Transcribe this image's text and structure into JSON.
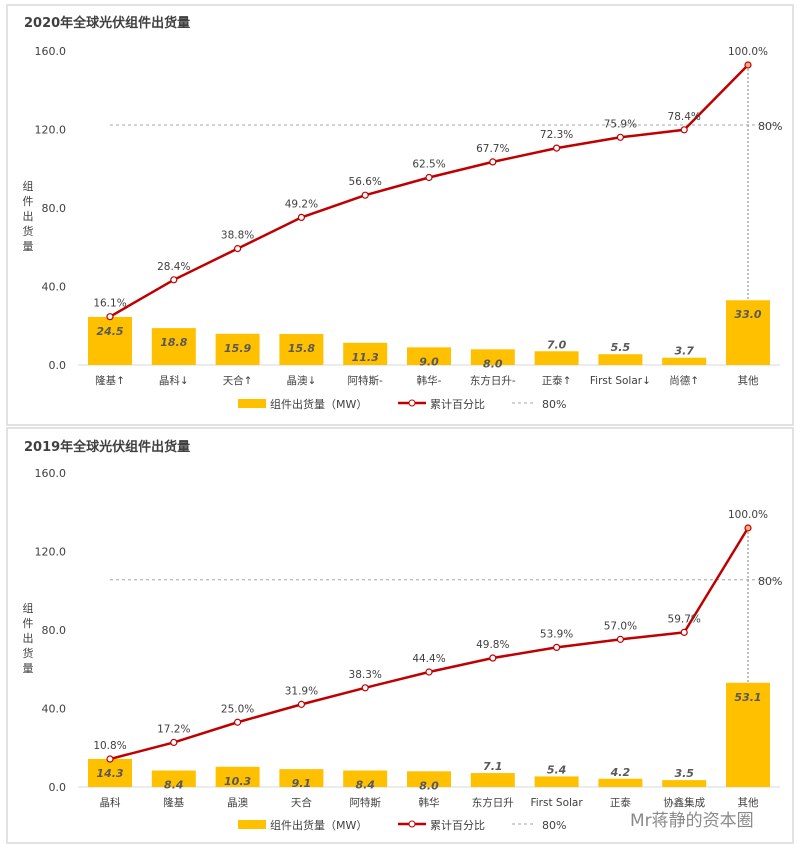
{
  "chart_data": [
    {
      "type": "bar",
      "title": "2020年全球光伏组件出货量",
      "ylabel": "组件出货量",
      "ylim": [
        0,
        160
      ],
      "yticks": [
        "0.0",
        "40.0",
        "80.0",
        "120.0",
        "160.0"
      ],
      "categories": [
        "隆基↑",
        "晶科↓",
        "天合↑",
        "晶澳↓",
        "阿特斯-",
        "韩华-",
        "东方日升-",
        "正泰↑",
        "First Solar↓",
        "尚德↑",
        "其他"
      ],
      "series": [
        {
          "name": "组件出货量（MW）",
          "type": "bar",
          "values": [
            24.5,
            18.8,
            15.9,
            15.8,
            11.3,
            9.0,
            8.0,
            7.0,
            5.5,
            3.7,
            33.0
          ],
          "labels": [
            "24.5",
            "18.8",
            "15.9",
            "15.8",
            "11.3",
            "9.0",
            "8.0",
            "7.0",
            "5.5",
            "3.7",
            "33.0"
          ]
        },
        {
          "name": "累计百分比",
          "type": "line",
          "values": [
            16.1,
            28.4,
            38.8,
            49.2,
            56.6,
            62.5,
            67.7,
            72.3,
            75.9,
            78.4,
            100.0
          ],
          "labels": [
            "16.1%",
            "28.4%",
            "38.8%",
            "49.2%",
            "56.6%",
            "62.5%",
            "67.7%",
            "72.3%",
            "75.9%",
            "78.4%",
            "100.0%"
          ]
        },
        {
          "name": "80%",
          "type": "reference",
          "value": 80,
          "label": "80%"
        }
      ],
      "secondary_axis_hidden": true,
      "grid": false,
      "legend": "bottom",
      "colors": {
        "bar": "#FFC000",
        "line": "#C00000",
        "reference": "#A6A6A6"
      }
    },
    {
      "type": "bar",
      "title": "2019年全球光伏组件出货量",
      "ylabel": "组件出货量",
      "ylim": [
        0,
        160
      ],
      "yticks": [
        "0.0",
        "40.0",
        "80.0",
        "120.0",
        "160.0"
      ],
      "categories": [
        "晶科",
        "隆基",
        "晶澳",
        "天合",
        "阿特斯",
        "韩华",
        "东方日升",
        "First Solar",
        "正泰",
        "协鑫集成",
        "其他"
      ],
      "series": [
        {
          "name": "组件出货量（MW）",
          "type": "bar",
          "values": [
            14.3,
            8.4,
            10.3,
            9.1,
            8.4,
            8.0,
            7.1,
            5.4,
            4.2,
            3.5,
            53.1
          ],
          "labels": [
            "14.3",
            "8.4",
            "10.3",
            "9.1",
            "8.4",
            "8.0",
            "7.1",
            "5.4",
            "4.2",
            "3.5",
            "53.1"
          ]
        },
        {
          "name": "累计百分比",
          "type": "line",
          "values": [
            10.8,
            17.2,
            25.0,
            31.9,
            38.3,
            44.4,
            49.8,
            53.9,
            57.0,
            59.7,
            100.0
          ],
          "labels": [
            "10.8%",
            "17.2%",
            "25.0%",
            "31.9%",
            "38.3%",
            "44.4%",
            "49.8%",
            "53.9%",
            "57.0%",
            "59.7%",
            "100.0%"
          ]
        },
        {
          "name": "80%",
          "type": "reference",
          "value": 80,
          "label": "80%"
        }
      ],
      "secondary_axis_hidden": true,
      "grid": false,
      "legend": "bottom",
      "colors": {
        "bar": "#FFC000",
        "line": "#C00000",
        "reference": "#A6A6A6"
      }
    }
  ],
  "watermark": "Mr蒋静的资本圈"
}
